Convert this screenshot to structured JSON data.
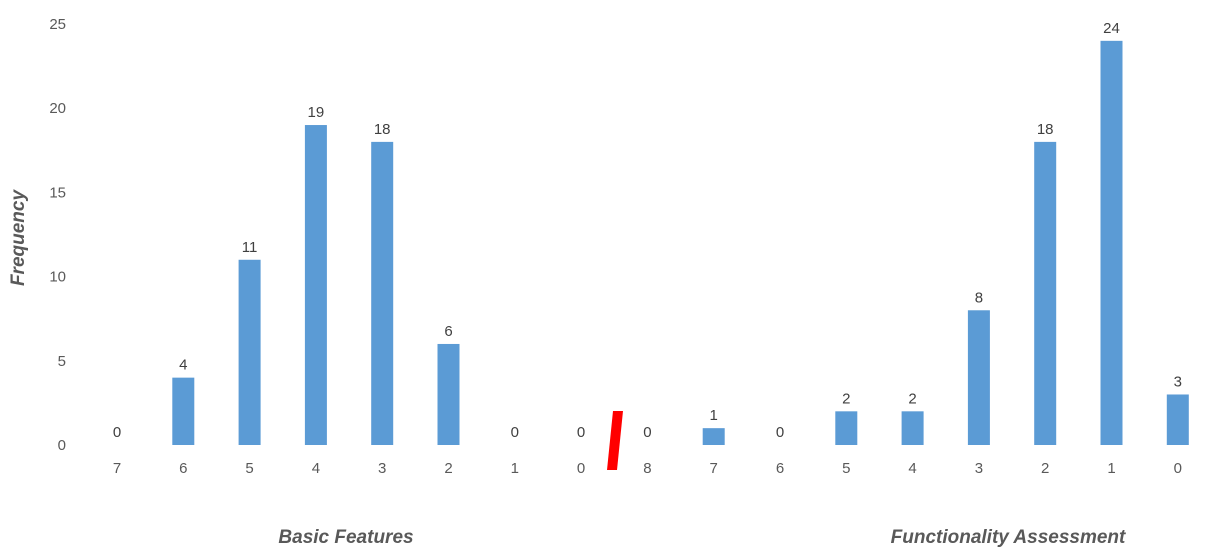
{
  "chart_data": {
    "type": "bar",
    "ylabel": "Frequency",
    "ylim": [
      0,
      25
    ],
    "yticks": [
      0,
      5,
      10,
      15,
      20,
      25
    ],
    "grid": false,
    "bar_color": "#5B9BD5",
    "break_marker_color": "#FF0000",
    "groups": [
      {
        "label": "Basic Features",
        "categories": [
          "7",
          "6",
          "5",
          "4",
          "3",
          "2",
          "1",
          "0"
        ],
        "values": [
          0,
          4,
          11,
          19,
          18,
          6,
          0,
          0
        ]
      },
      {
        "label": "Functionality Assessment",
        "categories": [
          "8",
          "7",
          "6",
          "5",
          "4",
          "3",
          "2",
          "1",
          "0"
        ],
        "values": [
          0,
          1,
          0,
          2,
          2,
          8,
          18,
          24,
          3
        ]
      }
    ]
  }
}
